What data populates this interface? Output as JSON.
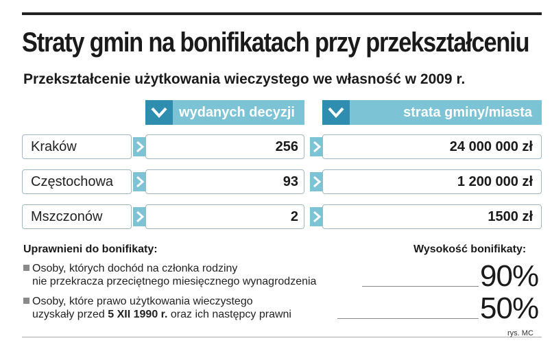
{
  "title": "Straty gmin na bonifikatach przy przekształceniu",
  "subtitle": "Przekształcenie użytkowania wieczystego we własność w 2009 r.",
  "chart_data": {
    "type": "table",
    "columns": [
      "wydanych decyzji",
      "strata gminy/miasta"
    ],
    "rows": [
      {
        "city": "Kraków",
        "decisions": "256",
        "loss": "24 000 000 zł"
      },
      {
        "city": "Częstochowa",
        "decisions": "93",
        "loss": "1 200 000 zł"
      },
      {
        "city": "Mszczonów",
        "decisions": "2",
        "loss": "1500 zł"
      }
    ]
  },
  "legend": {
    "left_heading": "Uprawnieni do bonifikaty:",
    "right_heading": "Wysokość bonifikaty:",
    "items": [
      {
        "line1": "Osoby, których dochód na członka rodziny",
        "line2": "nie przekracza przeciętnego miesięcznego wynagrodzenia",
        "pct": "90%"
      },
      {
        "line1": "Osoby, które prawo użytkowania wieczystego",
        "line2_a": "uzyskały przed ",
        "line2_bold": "5 XII 1990 r.",
        "line2_b": " oraz ich następcy prawni",
        "pct": "50%"
      }
    ]
  },
  "credit": "rys. MC",
  "colors": {
    "header_light": "#7dc3d6",
    "header_dark": "#2f8db0",
    "border": "#9fb7c3"
  }
}
